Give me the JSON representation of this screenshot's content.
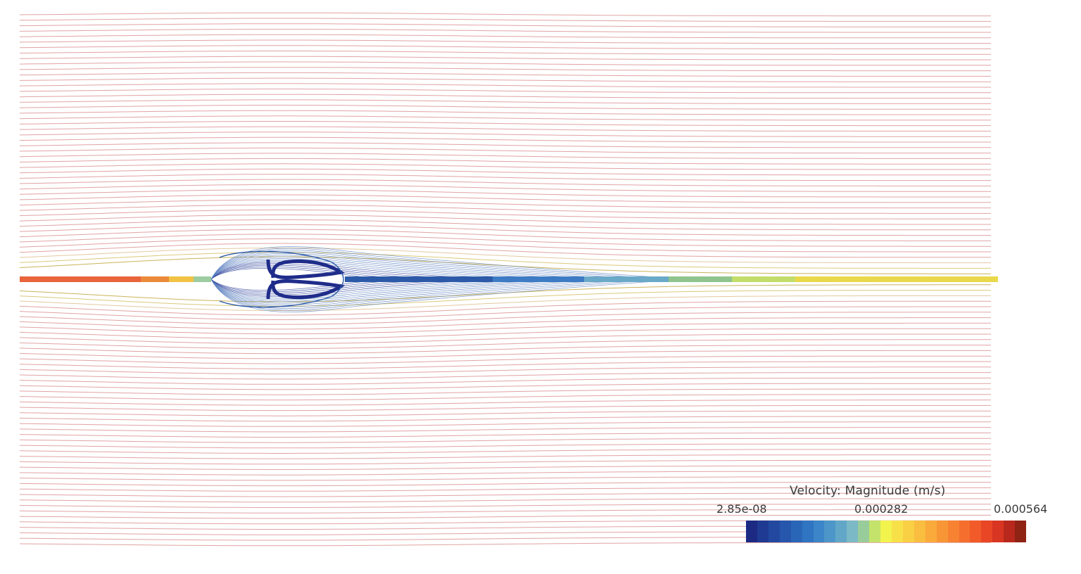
{
  "legend": {
    "title": "Velocity: Magnitude (m/s)",
    "min_label": "2.85e-08",
    "mid_label": "0.000282",
    "max_label": "0.000564",
    "min_value": 2.85e-08,
    "mid_value": 0.000282,
    "max_value": 0.000564,
    "colormap": [
      "#1c2a84",
      "#1f3a92",
      "#22499f",
      "#2657ac",
      "#2a66b8",
      "#2f75c2",
      "#3b85c8",
      "#4c96c9",
      "#62a7c8",
      "#7bb9c6",
      "#98cc9a",
      "#c4e36a",
      "#f3f34e",
      "#f8e148",
      "#f9cf44",
      "#f9bd40",
      "#f9aa3b",
      "#f89636",
      "#f78232",
      "#f56e2e",
      "#f25a2a",
      "#e94626",
      "#d83522",
      "#b9281c",
      "#8f2314"
    ]
  },
  "flow": {
    "freestream_color": "#e0a3a3",
    "centerline_inlet_color": "#e8643a",
    "wake_near_color": "#2c5aa8",
    "wake_far_color": "#e9d94a",
    "recirculation_color": "#1f2c8a"
  }
}
